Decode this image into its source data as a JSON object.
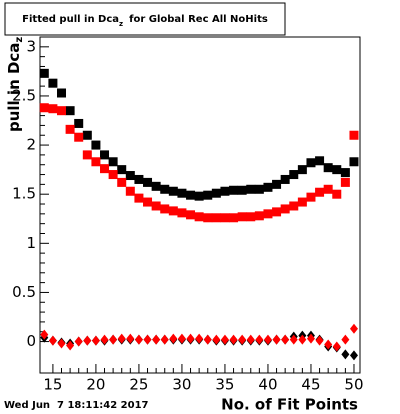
{
  "chart_data": {
    "type": "scatter",
    "title": "Fitted pull in Dca",
    "title_subscript": "z",
    "title_rest": "for Global Rec All NoHits",
    "y_label": "pull in Dca",
    "y_label_subscript": "z",
    "x_label": "No. of Fit Points",
    "footer": "Wed Jun  7 18:11:42 2017",
    "x": [
      14,
      15,
      16,
      17,
      18,
      19,
      20,
      21,
      22,
      23,
      24,
      25,
      26,
      27,
      28,
      29,
      30,
      31,
      32,
      33,
      34,
      35,
      36,
      37,
      38,
      39,
      40,
      41,
      42,
      43,
      44,
      45,
      46,
      47,
      48,
      49,
      50
    ],
    "series": [
      {
        "color": "#000000",
        "marker": "square",
        "values": [
          2.73,
          2.63,
          2.53,
          2.35,
          2.22,
          2.1,
          2.0,
          1.9,
          1.83,
          1.75,
          1.69,
          1.65,
          1.62,
          1.58,
          1.55,
          1.53,
          1.51,
          1.49,
          1.48,
          1.49,
          1.51,
          1.53,
          1.54,
          1.54,
          1.55,
          1.55,
          1.57,
          1.6,
          1.65,
          1.7,
          1.75,
          1.82,
          1.84,
          1.77,
          1.75,
          1.72,
          1.83
        ]
      },
      {
        "color": "#ff0000",
        "marker": "square",
        "values": [
          2.38,
          2.37,
          2.35,
          2.16,
          2.08,
          1.9,
          1.83,
          1.76,
          1.7,
          1.62,
          1.53,
          1.46,
          1.42,
          1.38,
          1.35,
          1.33,
          1.31,
          1.29,
          1.27,
          1.26,
          1.26,
          1.26,
          1.26,
          1.27,
          1.27,
          1.28,
          1.3,
          1.32,
          1.35,
          1.38,
          1.42,
          1.47,
          1.52,
          1.55,
          1.5,
          1.62,
          2.1
        ]
      },
      {
        "color": "#000000",
        "marker": "diamond",
        "values": [
          0.04,
          0.01,
          -0.01,
          -0.02,
          0.0,
          0.01,
          0.01,
          0.01,
          0.02,
          0.02,
          0.02,
          0.02,
          0.02,
          0.02,
          0.02,
          0.02,
          0.02,
          0.02,
          0.02,
          0.02,
          0.01,
          0.01,
          0.01,
          0.01,
          0.01,
          0.01,
          0.01,
          0.02,
          0.02,
          0.05,
          0.06,
          0.06,
          0.02,
          -0.05,
          -0.06,
          -0.13,
          -0.14
        ]
      },
      {
        "color": "#ff0000",
        "marker": "diamond",
        "values": [
          0.07,
          0.01,
          -0.02,
          -0.04,
          0.0,
          0.01,
          0.01,
          0.02,
          0.02,
          0.03,
          0.03,
          0.02,
          0.02,
          0.02,
          0.02,
          0.03,
          0.03,
          0.03,
          0.03,
          0.02,
          0.02,
          0.02,
          0.02,
          0.02,
          0.02,
          0.02,
          0.02,
          0.02,
          0.02,
          0.02,
          0.02,
          0.03,
          0.01,
          -0.03,
          -0.05,
          0.02,
          0.13
        ]
      }
    ],
    "xlim": [
      13.5,
      50.7
    ],
    "xticks": [
      15,
      20,
      25,
      30,
      35,
      40,
      45,
      50
    ],
    "ylim": [
      -0.32,
      3.1
    ],
    "yticks": [
      0,
      0.5,
      1,
      1.5,
      2,
      2.5,
      3
    ]
  }
}
